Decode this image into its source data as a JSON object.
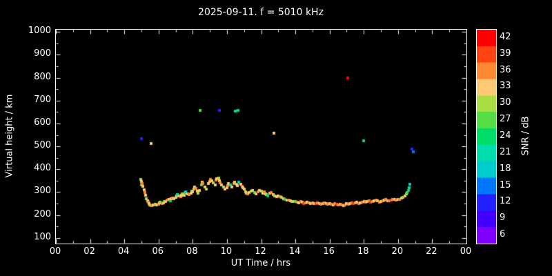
{
  "title": "2025-09-11. f = 5010 kHz",
  "colors": {
    "background": "#000000",
    "axis": "#ffffff",
    "text": "#ffffff"
  },
  "chart_data": {
    "type": "scatter",
    "title": "2025-09-11. f = 5010 kHz",
    "xlabel": "UT Time / hrs",
    "ylabel": "Virtual height / km",
    "xlim": [
      0,
      24
    ],
    "ylim": [
      100,
      1000
    ],
    "grid": false,
    "xticks": {
      "values": [
        0,
        2,
        4,
        6,
        8,
        10,
        12,
        14,
        16,
        18,
        20,
        22,
        24
      ],
      "labels": [
        "00",
        "02",
        "04",
        "06",
        "08",
        "10",
        "12",
        "14",
        "16",
        "18",
        "20",
        "22",
        "00"
      ]
    },
    "yticks": [
      100,
      200,
      300,
      400,
      500,
      600,
      700,
      800,
      900,
      1000
    ],
    "colorbar": {
      "label": "SNR / dB",
      "position": "right",
      "ticks": [
        6,
        9,
        12,
        15,
        18,
        21,
        24,
        27,
        30,
        33,
        36,
        39,
        42
      ],
      "colors": [
        "#8000ff",
        "#4400ff",
        "#2222ff",
        "#0077ff",
        "#00cccc",
        "#00ddaa",
        "#00dd66",
        "#55dd44",
        "#aadd44",
        "#ffc873",
        "#ff8833",
        "#ff4411",
        "#ff0000"
      ]
    },
    "point_meaning": "[ut_hours, virtual_height_km, snr_db]",
    "points": [
      [
        5.0,
        533,
        12
      ],
      [
        5.55,
        512,
        33
      ],
      [
        8.45,
        657,
        27
      ],
      [
        9.55,
        657,
        12
      ],
      [
        10.5,
        655,
        21
      ],
      [
        10.65,
        658,
        24
      ],
      [
        12.75,
        557,
        33
      ],
      [
        17.05,
        799,
        42
      ],
      [
        18.0,
        525,
        24
      ],
      [
        20.8,
        487,
        12
      ],
      [
        20.9,
        477,
        15
      ],
      [
        4.95,
        355,
        30
      ],
      [
        5.0,
        345,
        33
      ],
      [
        5.02,
        331,
        27
      ],
      [
        5.05,
        338,
        36
      ],
      [
        5.1,
        325,
        33
      ],
      [
        5.15,
        310,
        33
      ],
      [
        5.2,
        298,
        36
      ],
      [
        5.25,
        285,
        33
      ],
      [
        5.3,
        272,
        30
      ],
      [
        5.35,
        262,
        33
      ],
      [
        5.4,
        255,
        36
      ],
      [
        5.45,
        250,
        33
      ],
      [
        5.5,
        245,
        30
      ],
      [
        5.55,
        242,
        33
      ],
      [
        5.6,
        240,
        36
      ],
      [
        5.7,
        243,
        33
      ],
      [
        5.8,
        247,
        30
      ],
      [
        5.9,
        244,
        33
      ],
      [
        6.0,
        248,
        36
      ],
      [
        6.05,
        252,
        33
      ],
      [
        6.1,
        256,
        30
      ],
      [
        6.2,
        250,
        36
      ],
      [
        6.3,
        254,
        33
      ],
      [
        6.35,
        260,
        27
      ],
      [
        6.4,
        258,
        33
      ],
      [
        6.5,
        264,
        36
      ],
      [
        6.6,
        268,
        33
      ],
      [
        6.7,
        262,
        24
      ],
      [
        6.75,
        270,
        33
      ],
      [
        6.8,
        274,
        36
      ],
      [
        6.9,
        270,
        33
      ],
      [
        7.0,
        276,
        33
      ],
      [
        7.05,
        282,
        30
      ],
      [
        7.1,
        288,
        21
      ],
      [
        7.2,
        284,
        33
      ],
      [
        7.3,
        279,
        36
      ],
      [
        7.35,
        286,
        33
      ],
      [
        7.4,
        292,
        30
      ],
      [
        7.5,
        287,
        33
      ],
      [
        7.55,
        295,
        27
      ],
      [
        7.6,
        300,
        18
      ],
      [
        7.7,
        293,
        33
      ],
      [
        7.8,
        289,
        36
      ],
      [
        7.9,
        296,
        33
      ],
      [
        7.95,
        304,
        30
      ],
      [
        8.0,
        302,
        33
      ],
      [
        8.05,
        312,
        30
      ],
      [
        8.1,
        322,
        33
      ],
      [
        8.2,
        315,
        36
      ],
      [
        8.25,
        305,
        33
      ],
      [
        8.3,
        296,
        30
      ],
      [
        8.4,
        308,
        33
      ],
      [
        8.5,
        332,
        27
      ],
      [
        8.55,
        342,
        33
      ],
      [
        8.6,
        336,
        36
      ],
      [
        8.7,
        322,
        33
      ],
      [
        8.8,
        312,
        30
      ],
      [
        8.9,
        336,
        33
      ],
      [
        9.0,
        346,
        33
      ],
      [
        9.05,
        356,
        36
      ],
      [
        9.1,
        350,
        33
      ],
      [
        9.2,
        340,
        30
      ],
      [
        9.3,
        332,
        33
      ],
      [
        9.35,
        352,
        36
      ],
      [
        9.4,
        358,
        33
      ],
      [
        9.5,
        362,
        30
      ],
      [
        9.55,
        348,
        33
      ],
      [
        9.6,
        340,
        36
      ],
      [
        9.7,
        332,
        33
      ],
      [
        9.8,
        322,
        30
      ],
      [
        9.9,
        314,
        33
      ],
      [
        10.0,
        318,
        33
      ],
      [
        10.05,
        328,
        36
      ],
      [
        10.1,
        336,
        33
      ],
      [
        10.2,
        330,
        21
      ],
      [
        10.3,
        322,
        33
      ],
      [
        10.4,
        338,
        36
      ],
      [
        10.45,
        344,
        33
      ],
      [
        10.55,
        334,
        30
      ],
      [
        10.6,
        328,
        33
      ],
      [
        10.7,
        342,
        18
      ],
      [
        10.8,
        334,
        33
      ],
      [
        10.9,
        326,
        36
      ],
      [
        10.95,
        318,
        33
      ],
      [
        11.0,
        312,
        33
      ],
      [
        11.1,
        302,
        30
      ],
      [
        11.15,
        296,
        33
      ],
      [
        11.2,
        292,
        36
      ],
      [
        11.3,
        298,
        33
      ],
      [
        11.4,
        304,
        30
      ],
      [
        11.5,
        308,
        33
      ],
      [
        11.6,
        298,
        27
      ],
      [
        11.7,
        292,
        33
      ],
      [
        11.8,
        300,
        36
      ],
      [
        11.9,
        308,
        33
      ],
      [
        12.0,
        304,
        30
      ],
      [
        12.1,
        296,
        33
      ],
      [
        12.2,
        300,
        36
      ],
      [
        12.25,
        292,
        33
      ],
      [
        12.3,
        288,
        30
      ],
      [
        12.4,
        284,
        24
      ],
      [
        12.5,
        294,
        33
      ],
      [
        12.6,
        298,
        36
      ],
      [
        12.7,
        290,
        33
      ],
      [
        12.8,
        284,
        30
      ],
      [
        12.9,
        280,
        33
      ],
      [
        13.0,
        284,
        33
      ],
      [
        13.1,
        280,
        36
      ],
      [
        13.2,
        276,
        30
      ],
      [
        13.3,
        272,
        33
      ],
      [
        13.4,
        268,
        24
      ],
      [
        13.5,
        266,
        33
      ],
      [
        13.6,
        264,
        36
      ],
      [
        13.7,
        262,
        33
      ],
      [
        13.8,
        260,
        30
      ],
      [
        13.9,
        258,
        33
      ],
      [
        14.0,
        260,
        27
      ],
      [
        14.1,
        257,
        36
      ],
      [
        14.2,
        254,
        33
      ],
      [
        14.3,
        259,
        36
      ],
      [
        14.4,
        255,
        33
      ],
      [
        14.5,
        251,
        39
      ],
      [
        14.6,
        254,
        36
      ],
      [
        14.7,
        257,
        33
      ],
      [
        14.8,
        253,
        36
      ],
      [
        14.9,
        250,
        33
      ],
      [
        15.0,
        254,
        36
      ],
      [
        15.1,
        251,
        33
      ],
      [
        15.2,
        249,
        39
      ],
      [
        15.3,
        252,
        36
      ],
      [
        15.4,
        249,
        33
      ],
      [
        15.5,
        247,
        36
      ],
      [
        15.6,
        251,
        33
      ],
      [
        15.7,
        254,
        36
      ],
      [
        15.8,
        249,
        33
      ],
      [
        15.9,
        247,
        36
      ],
      [
        16.0,
        249,
        33
      ],
      [
        16.1,
        247,
        36
      ],
      [
        16.2,
        244,
        33
      ],
      [
        16.3,
        249,
        36
      ],
      [
        16.4,
        246,
        39
      ],
      [
        16.5,
        243,
        36
      ],
      [
        16.6,
        247,
        33
      ],
      [
        16.7,
        244,
        36
      ],
      [
        16.8,
        241,
        33
      ],
      [
        16.9,
        245,
        36
      ],
      [
        17.0,
        249,
        33
      ],
      [
        17.1,
        247,
        36
      ],
      [
        17.2,
        251,
        33
      ],
      [
        17.3,
        254,
        36
      ],
      [
        17.4,
        249,
        39
      ],
      [
        17.5,
        252,
        36
      ],
      [
        17.6,
        255,
        33
      ],
      [
        17.7,
        251,
        36
      ],
      [
        17.8,
        254,
        33
      ],
      [
        17.9,
        257,
        36
      ],
      [
        18.05,
        259,
        33
      ],
      [
        18.1,
        257,
        36
      ],
      [
        18.2,
        259,
        33
      ],
      [
        18.3,
        261,
        36
      ],
      [
        18.4,
        257,
        39
      ],
      [
        18.5,
        259,
        36
      ],
      [
        18.6,
        262,
        33
      ],
      [
        18.7,
        264,
        36
      ],
      [
        18.8,
        261,
        33
      ],
      [
        18.9,
        257,
        36
      ],
      [
        19.0,
        259,
        33
      ],
      [
        19.1,
        261,
        36
      ],
      [
        19.2,
        264,
        33
      ],
      [
        19.3,
        267,
        36
      ],
      [
        19.4,
        263,
        33
      ],
      [
        19.5,
        261,
        36
      ],
      [
        19.6,
        264,
        39
      ],
      [
        19.7,
        267,
        36
      ],
      [
        19.8,
        269,
        33
      ],
      [
        19.9,
        265,
        36
      ],
      [
        20.0,
        267,
        33
      ],
      [
        20.1,
        269,
        36
      ],
      [
        20.2,
        273,
        33
      ],
      [
        20.3,
        277,
        30
      ],
      [
        20.4,
        283,
        33
      ],
      [
        20.5,
        291,
        30
      ],
      [
        20.55,
        299,
        27
      ],
      [
        20.6,
        308,
        24
      ],
      [
        20.65,
        320,
        21
      ],
      [
        20.7,
        333,
        18
      ]
    ]
  }
}
